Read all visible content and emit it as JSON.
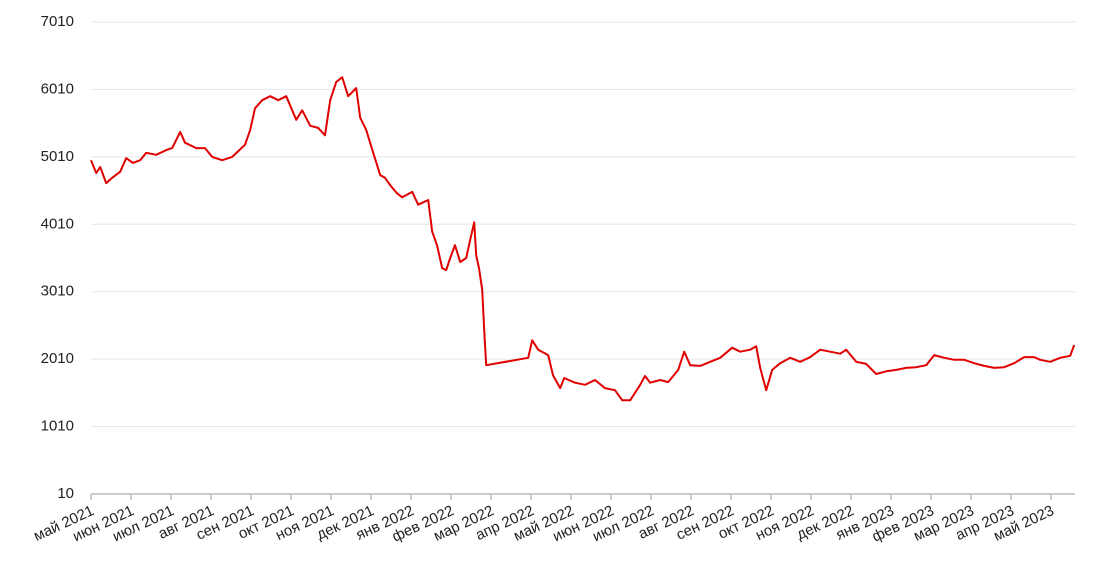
{
  "chart_data": {
    "type": "line",
    "color": "#e00000",
    "grid": true,
    "ylim": [
      10,
      7010
    ],
    "yticks": [
      10,
      1010,
      2010,
      3010,
      4010,
      5010,
      6010,
      7010
    ],
    "xlim": [
      0,
      24.6
    ],
    "xticks": [
      {
        "value": 0,
        "label": "май 2021"
      },
      {
        "value": 1,
        "label": "июн 2021"
      },
      {
        "value": 2,
        "label": "июл 2021"
      },
      {
        "value": 3,
        "label": "авг 2021"
      },
      {
        "value": 4,
        "label": "сен 2021"
      },
      {
        "value": 5,
        "label": "окт 2021"
      },
      {
        "value": 6,
        "label": "ноя 2021"
      },
      {
        "value": 7,
        "label": "дек 2021"
      },
      {
        "value": 8,
        "label": "янв 2022"
      },
      {
        "value": 9,
        "label": "фев 2022"
      },
      {
        "value": 10,
        "label": "мар 2022"
      },
      {
        "value": 11,
        "label": "апр 2022"
      },
      {
        "value": 12,
        "label": "май 2022"
      },
      {
        "value": 13,
        "label": "июн 2022"
      },
      {
        "value": 14,
        "label": "июл 2022"
      },
      {
        "value": 15,
        "label": "авг 2022"
      },
      {
        "value": 16,
        "label": "сен 2022"
      },
      {
        "value": 17,
        "label": "окт 2022"
      },
      {
        "value": 18,
        "label": "ноя 2022"
      },
      {
        "value": 19,
        "label": "дек 2022"
      },
      {
        "value": 20,
        "label": "янв 2023"
      },
      {
        "value": 21,
        "label": "фев 2023"
      },
      {
        "value": 22,
        "label": "мар 2023"
      },
      {
        "value": 23,
        "label": "апр 2023"
      },
      {
        "value": 24,
        "label": "май 2023"
      }
    ],
    "x": [
      0,
      0.13,
      0.23,
      0.38,
      0.53,
      0.73,
      0.88,
      1.05,
      1.23,
      1.38,
      1.63,
      1.88,
      2.03,
      2.23,
      2.35,
      2.63,
      2.85,
      3.03,
      3.28,
      3.53,
      3.85,
      3.98,
      4.1,
      4.28,
      4.48,
      4.68,
      4.88,
      5.03,
      5.13,
      5.28,
      5.48,
      5.68,
      5.85,
      5.98,
      6.13,
      6.28,
      6.43,
      6.63,
      6.73,
      6.88,
      7.05,
      7.23,
      7.35,
      7.48,
      7.65,
      7.78,
      8.03,
      8.18,
      8.43,
      8.53,
      8.65,
      8.78,
      8.88,
      8.98,
      9.1,
      9.23,
      9.38,
      9.48,
      9.58,
      9.63,
      9.7,
      9.78,
      9.83,
      9.88,
      10.93,
      11.03,
      11.18,
      11.43,
      11.55,
      11.73,
      11.83,
      12.1,
      12.35,
      12.6,
      12.85,
      13.1,
      13.28,
      13.48,
      13.73,
      13.85,
      13.98,
      14.23,
      14.43,
      14.68,
      14.83,
      14.98,
      15.23,
      15.48,
      15.73,
      16.03,
      16.23,
      16.48,
      16.63,
      16.73,
      16.88,
      17.03,
      17.23,
      17.48,
      17.73,
      17.98,
      18.23,
      18.48,
      18.73,
      18.88,
      19.13,
      19.38,
      19.63,
      19.88,
      20.13,
      20.38,
      20.63,
      20.88,
      21.08,
      21.33,
      21.58,
      21.83,
      22.08,
      22.33,
      22.58,
      22.83,
      23.08,
      23.33,
      23.58,
      23.73,
      23.98,
      24.23,
      24.48,
      24.58
    ],
    "values": [
      4960,
      4770,
      4860,
      4620,
      4700,
      4790,
      4990,
      4920,
      4960,
      5070,
      5040,
      5110,
      5140,
      5380,
      5220,
      5140,
      5140,
      5010,
      4960,
      5010,
      5190,
      5410,
      5730,
      5850,
      5910,
      5850,
      5910,
      5700,
      5560,
      5700,
      5470,
      5440,
      5330,
      5850,
      6120,
      6190,
      5910,
      6030,
      5590,
      5410,
      5080,
      4740,
      4700,
      4590,
      4470,
      4410,
      4490,
      4300,
      4370,
      3900,
      3700,
      3360,
      3330,
      3510,
      3700,
      3450,
      3510,
      3780,
      4040,
      3550,
      3360,
      3040,
      2440,
      1920,
      2030,
      2290,
      2150,
      2070,
      1770,
      1580,
      1730,
      1660,
      1630,
      1700,
      1580,
      1550,
      1400,
      1400,
      1630,
      1760,
      1660,
      1700,
      1670,
      1850,
      2120,
      1920,
      1910,
      1970,
      2030,
      2180,
      2120,
      2150,
      2200,
      1880,
      1550,
      1850,
      1950,
      2030,
      1970,
      2040,
      2150,
      2120,
      2090,
      2150,
      1970,
      1940,
      1790,
      1830,
      1850,
      1880,
      1890,
      1920,
      2070,
      2030,
      2000,
      2000,
      1950,
      1910,
      1880,
      1890,
      1950,
      2040,
      2040,
      2000,
      1970,
      2030,
      2060,
      2220
    ]
  }
}
